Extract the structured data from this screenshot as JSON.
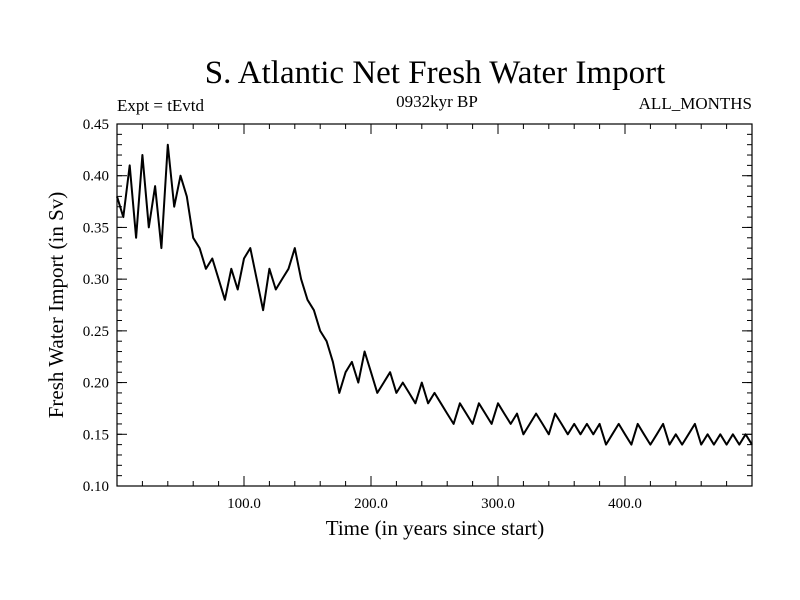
{
  "chart_data": {
    "type": "line",
    "title": "S. Atlantic Net Fresh Water Import",
    "experiment_label": "Expt = tEvtd",
    "period_label": "0932kyr BP",
    "months_label": "ALL_MONTHS",
    "xlabel": "Time (in years since start)",
    "ylabel": "Fresh Water Import (in Sv)",
    "xlim": [
      0,
      500
    ],
    "ylim": [
      0.1,
      0.45
    ],
    "x_ticks": [
      100,
      200,
      300,
      400
    ],
    "x_tick_labels": [
      "100.0",
      "200.0",
      "300.0",
      "400.0"
    ],
    "y_ticks": [
      0.1,
      0.15,
      0.2,
      0.25,
      0.3,
      0.35,
      0.4,
      0.45
    ],
    "y_tick_labels": [
      "0.10",
      "0.15",
      "0.20",
      "0.25",
      "0.30",
      "0.35",
      "0.40",
      "0.45"
    ],
    "x_minor_step": 20,
    "y_minor_step": 0.01,
    "series": [
      {
        "name": "Net Fresh Water Import",
        "color": "#000000",
        "x": [
          0,
          5,
          10,
          15,
          20,
          25,
          30,
          35,
          40,
          45,
          50,
          55,
          60,
          65,
          70,
          75,
          80,
          85,
          90,
          95,
          100,
          105,
          110,
          115,
          120,
          125,
          130,
          135,
          140,
          145,
          150,
          155,
          160,
          165,
          170,
          175,
          180,
          185,
          190,
          195,
          200,
          205,
          210,
          215,
          220,
          225,
          230,
          235,
          240,
          245,
          250,
          255,
          260,
          265,
          270,
          275,
          280,
          285,
          290,
          295,
          300,
          305,
          310,
          315,
          320,
          325,
          330,
          335,
          340,
          345,
          350,
          355,
          360,
          365,
          370,
          375,
          380,
          385,
          390,
          395,
          400,
          405,
          410,
          415,
          420,
          425,
          430,
          435,
          440,
          445,
          450,
          455,
          460,
          465,
          470,
          475,
          480,
          485,
          490,
          495,
          500
        ],
        "values": [
          0.38,
          0.36,
          0.41,
          0.34,
          0.42,
          0.35,
          0.39,
          0.33,
          0.43,
          0.37,
          0.4,
          0.38,
          0.34,
          0.33,
          0.31,
          0.32,
          0.3,
          0.28,
          0.31,
          0.29,
          0.32,
          0.33,
          0.3,
          0.27,
          0.31,
          0.29,
          0.3,
          0.31,
          0.33,
          0.3,
          0.28,
          0.27,
          0.25,
          0.24,
          0.22,
          0.19,
          0.21,
          0.22,
          0.2,
          0.23,
          0.21,
          0.19,
          0.2,
          0.21,
          0.19,
          0.2,
          0.19,
          0.18,
          0.2,
          0.18,
          0.19,
          0.18,
          0.17,
          0.16,
          0.18,
          0.17,
          0.16,
          0.18,
          0.17,
          0.16,
          0.18,
          0.17,
          0.16,
          0.17,
          0.15,
          0.16,
          0.17,
          0.16,
          0.15,
          0.17,
          0.16,
          0.15,
          0.16,
          0.15,
          0.16,
          0.15,
          0.16,
          0.14,
          0.15,
          0.16,
          0.15,
          0.14,
          0.16,
          0.15,
          0.14,
          0.15,
          0.16,
          0.14,
          0.15,
          0.14,
          0.15,
          0.16,
          0.14,
          0.15,
          0.14,
          0.15,
          0.14,
          0.15,
          0.14,
          0.15,
          0.14
        ]
      }
    ]
  }
}
